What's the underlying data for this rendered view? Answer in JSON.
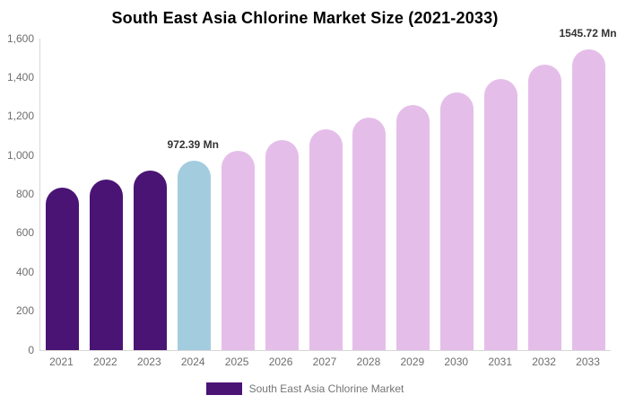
{
  "chart_data": {
    "type": "bar",
    "title": "South East Asia Chlorine Market Size (2021-2033)",
    "unit": "Mn",
    "categories": [
      "2021",
      "2022",
      "2023",
      "2024",
      "2025",
      "2026",
      "2027",
      "2028",
      "2029",
      "2030",
      "2031",
      "2032",
      "2033"
    ],
    "values": [
      833,
      877,
      924,
      972.39,
      1024,
      1078,
      1135,
      1194,
      1258,
      1324,
      1394,
      1467,
      1545.72
    ],
    "bar_colors": [
      "#4A1475",
      "#4A1475",
      "#4A1475",
      "#A3CCDF",
      "#E4BEE9",
      "#E4BEE9",
      "#E4BEE9",
      "#E4BEE9",
      "#E4BEE9",
      "#E4BEE9",
      "#E4BEE9",
      "#E4BEE9",
      "#E4BEE9"
    ],
    "value_labels": [
      {
        "category": "2024",
        "text": "972.39 Mn"
      },
      {
        "category": "2033",
        "text": "1545.72 Mn"
      }
    ],
    "xlabel": "",
    "ylabel": "",
    "ylim": [
      0,
      1600
    ],
    "yticks": [
      {
        "value": 0,
        "label": "0"
      },
      {
        "value": 200,
        "label": "200"
      },
      {
        "value": 400,
        "label": "400"
      },
      {
        "value": 600,
        "label": "600"
      },
      {
        "value": 800,
        "label": "800"
      },
      {
        "value": 1000,
        "label": "1,000"
      },
      {
        "value": 1200,
        "label": "1,200"
      },
      {
        "value": 1400,
        "label": "1,400"
      },
      {
        "value": 1600,
        "label": "1,600"
      }
    ],
    "grid": false,
    "legend": {
      "position": "bottom",
      "items": [
        {
          "label": "South East Asia Chlorine Market",
          "color": "#4A1475"
        }
      ]
    },
    "colors": {
      "historical_bar": "#4A1475",
      "current_year_bar": "#A3CCDF",
      "forecast_bar": "#E4BEE9",
      "axis_line": "#d8d8d8",
      "tick_text": "#6e6e6e",
      "value_label_text": "#333333",
      "legend_text": "#757575",
      "title_text": "#000000"
    }
  }
}
